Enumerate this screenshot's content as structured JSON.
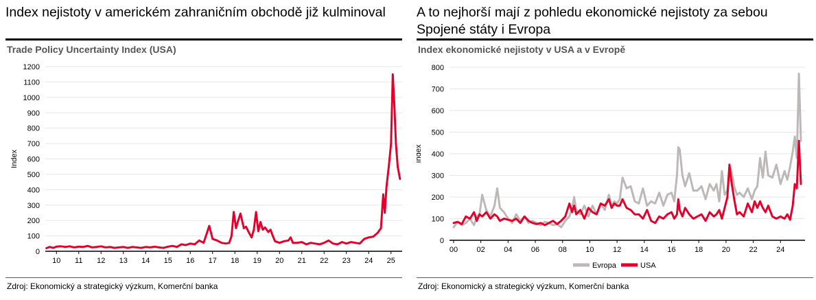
{
  "left": {
    "headline": "Index nejistoty v americkém zahraničním obchodě již kulminoval",
    "subtitle": "Trade Policy Uncertainty Index (USA)",
    "source": "Zdroj: Ekonomický a strategický výzkum, Komerční banka"
  },
  "right": {
    "headline_line1": "A to nejhorší mají z pohledu ekonomické nejistoty za sebou",
    "headline_line2": "Spojené státy i Evropa",
    "subtitle": "Index ekonomické nejistoty v USA a v Evropě",
    "source": "Zdroj: Ekonomický a strategický výzkum, Komerční banka"
  },
  "colors": {
    "usa": "#e4002b",
    "europe": "#bdb8b8",
    "grid": "#e6e6e6",
    "axis": "#000000"
  },
  "chart_data": [
    {
      "type": "line",
      "ylabel": "Index",
      "xlabel": "",
      "ylim": [
        0,
        1200
      ],
      "yticks": [
        0,
        100,
        200,
        300,
        400,
        500,
        600,
        700,
        800,
        900,
        1000,
        1100,
        1200
      ],
      "xlim": [
        2009.5,
        2025.5
      ],
      "xticks": [
        2010,
        2011,
        2012,
        2013,
        2014,
        2015,
        2016,
        2017,
        2018,
        2019,
        2020,
        2021,
        2022,
        2023,
        2024,
        2025
      ],
      "xtick_labels": [
        "10",
        "11",
        "12",
        "13",
        "14",
        "15",
        "16",
        "17",
        "18",
        "19",
        "20",
        "21",
        "22",
        "23",
        "24",
        "25"
      ],
      "legend": "none",
      "grid": "horizontal",
      "series": [
        {
          "name": "",
          "color": "#e4002b",
          "x": [
            2009.55,
            2009.7,
            2009.85,
            2010.0,
            2010.2,
            2010.4,
            2010.6,
            2010.8,
            2011.0,
            2011.2,
            2011.4,
            2011.6,
            2011.8,
            2012.0,
            2012.2,
            2012.4,
            2012.6,
            2012.8,
            2013.0,
            2013.2,
            2013.4,
            2013.6,
            2013.8,
            2014.0,
            2014.2,
            2014.4,
            2014.6,
            2014.8,
            2015.0,
            2015.2,
            2015.4,
            2015.6,
            2015.8,
            2016.0,
            2016.2,
            2016.4,
            2016.6,
            2016.75,
            2016.85,
            2017.0,
            2017.2,
            2017.4,
            2017.6,
            2017.75,
            2017.85,
            2017.95,
            2018.05,
            2018.15,
            2018.25,
            2018.4,
            2018.5,
            2018.6,
            2018.75,
            2018.85,
            2018.95,
            2019.05,
            2019.15,
            2019.25,
            2019.35,
            2019.5,
            2019.6,
            2019.7,
            2019.8,
            2020.0,
            2020.2,
            2020.4,
            2020.5,
            2020.6,
            2020.8,
            2021.0,
            2021.2,
            2021.4,
            2021.6,
            2021.8,
            2022.0,
            2022.2,
            2022.4,
            2022.6,
            2022.8,
            2023.0,
            2023.2,
            2023.4,
            2023.6,
            2023.8,
            2024.0,
            2024.2,
            2024.4,
            2024.55,
            2024.65,
            2024.72,
            2024.8,
            2024.9,
            2025.0,
            2025.08,
            2025.15,
            2025.22,
            2025.3,
            2025.4
          ],
          "y": [
            20,
            28,
            22,
            30,
            32,
            28,
            32,
            25,
            30,
            28,
            35,
            25,
            28,
            32,
            25,
            28,
            22,
            25,
            28,
            22,
            28,
            25,
            22,
            28,
            25,
            30,
            25,
            22,
            30,
            35,
            28,
            45,
            40,
            50,
            45,
            70,
            55,
            120,
            165,
            80,
            70,
            55,
            50,
            55,
            100,
            255,
            150,
            200,
            245,
            150,
            160,
            130,
            90,
            140,
            255,
            130,
            190,
            140,
            155,
            125,
            140,
            100,
            65,
            55,
            65,
            70,
            90,
            55,
            55,
            60,
            45,
            55,
            50,
            45,
            55,
            70,
            50,
            45,
            60,
            50,
            60,
            55,
            50,
            80,
            90,
            95,
            120,
            150,
            370,
            250,
            420,
            550,
            700,
            1150,
            950,
            700,
            550,
            470
          ]
        }
      ]
    },
    {
      "type": "line",
      "ylabel": "Index",
      "xlabel": "",
      "ylim": [
        0,
        800
      ],
      "yticks": [
        0,
        100,
        200,
        300,
        400,
        500,
        600,
        700,
        800
      ],
      "xlim": [
        1999.7,
        2025.8
      ],
      "xticks": [
        2000,
        2002,
        2004,
        2006,
        2008,
        2010,
        2012,
        2014,
        2016,
        2018,
        2020,
        2022,
        2024
      ],
      "xtick_labels": [
        "00",
        "02",
        "04",
        "06",
        "08",
        "10",
        "12",
        "14",
        "16",
        "18",
        "20",
        "22",
        "24"
      ],
      "legend": "bottom-center",
      "grid": "horizontal",
      "series": [
        {
          "name": "Evropa",
          "color": "#bdb8b8",
          "x": [
            2000.0,
            2000.3,
            2000.6,
            2000.9,
            2001.2,
            2001.5,
            2001.7,
            2001.9,
            2002.1,
            2002.4,
            2002.7,
            2003.0,
            2003.2,
            2003.4,
            2003.7,
            2004.0,
            2004.3,
            2004.6,
            2004.9,
            2005.2,
            2005.5,
            2005.8,
            2006.1,
            2006.4,
            2006.7,
            2007.0,
            2007.3,
            2007.6,
            2007.9,
            2008.2,
            2008.5,
            2008.7,
            2008.85,
            2009.0,
            2009.3,
            2009.6,
            2009.9,
            2010.2,
            2010.5,
            2010.8,
            2011.1,
            2011.4,
            2011.6,
            2011.8,
            2012.0,
            2012.2,
            2012.4,
            2012.7,
            2013.0,
            2013.3,
            2013.6,
            2013.9,
            2014.2,
            2014.5,
            2014.8,
            2015.1,
            2015.4,
            2015.7,
            2016.0,
            2016.2,
            2016.4,
            2016.5,
            2016.6,
            2016.8,
            2017.0,
            2017.3,
            2017.6,
            2017.9,
            2018.2,
            2018.5,
            2018.8,
            2019.1,
            2019.3,
            2019.5,
            2019.7,
            2019.9,
            2020.1,
            2020.25,
            2020.4,
            2020.6,
            2020.8,
            2021.0,
            2021.3,
            2021.6,
            2021.9,
            2022.1,
            2022.3,
            2022.5,
            2022.7,
            2022.9,
            2023.1,
            2023.4,
            2023.7,
            2024.0,
            2024.3,
            2024.5,
            2024.7,
            2024.9,
            2025.05,
            2025.2,
            2025.35,
            2025.5
          ],
          "y": [
            60,
            85,
            70,
            80,
            100,
            70,
            110,
            120,
            210,
            140,
            110,
            160,
            240,
            150,
            130,
            100,
            80,
            120,
            90,
            110,
            80,
            90,
            80,
            70,
            85,
            80,
            70,
            75,
            60,
            90,
            110,
            150,
            200,
            140,
            120,
            160,
            110,
            160,
            120,
            170,
            140,
            210,
            160,
            180,
            170,
            190,
            290,
            240,
            250,
            180,
            170,
            240,
            160,
            180,
            170,
            220,
            160,
            210,
            220,
            180,
            300,
            430,
            420,
            300,
            250,
            310,
            230,
            230,
            250,
            190,
            260,
            230,
            260,
            180,
            320,
            210,
            230,
            340,
            320,
            250,
            210,
            220,
            200,
            240,
            190,
            230,
            250,
            380,
            290,
            410,
            300,
            290,
            350,
            260,
            320,
            280,
            340,
            410,
            480,
            380,
            770,
            460
          ]
        },
        {
          "name": "USA",
          "color": "#e4002b",
          "x": [
            2000.0,
            2000.3,
            2000.6,
            2000.9,
            2001.2,
            2001.5,
            2001.7,
            2001.9,
            2002.1,
            2002.4,
            2002.7,
            2003.0,
            2003.2,
            2003.4,
            2003.7,
            2004.0,
            2004.3,
            2004.6,
            2004.9,
            2005.2,
            2005.5,
            2005.8,
            2006.1,
            2006.4,
            2006.7,
            2007.0,
            2007.3,
            2007.6,
            2007.9,
            2008.2,
            2008.5,
            2008.7,
            2008.85,
            2009.0,
            2009.3,
            2009.6,
            2009.9,
            2010.2,
            2010.5,
            2010.8,
            2011.1,
            2011.4,
            2011.6,
            2011.8,
            2012.0,
            2012.2,
            2012.4,
            2012.7,
            2013.0,
            2013.3,
            2013.6,
            2013.9,
            2014.2,
            2014.5,
            2014.8,
            2015.1,
            2015.4,
            2015.7,
            2016.0,
            2016.2,
            2016.4,
            2016.5,
            2016.6,
            2016.8,
            2017.0,
            2017.3,
            2017.6,
            2017.9,
            2018.2,
            2018.5,
            2018.8,
            2019.1,
            2019.3,
            2019.5,
            2019.7,
            2019.9,
            2020.1,
            2020.25,
            2020.4,
            2020.6,
            2020.8,
            2021.0,
            2021.3,
            2021.6,
            2021.9,
            2022.1,
            2022.3,
            2022.5,
            2022.7,
            2022.9,
            2023.1,
            2023.4,
            2023.7,
            2024.0,
            2024.3,
            2024.5,
            2024.7,
            2024.9,
            2025.05,
            2025.2,
            2025.35,
            2025.5
          ],
          "y": [
            80,
            85,
            75,
            110,
            100,
            130,
            90,
            120,
            110,
            130,
            100,
            120,
            110,
            90,
            100,
            95,
            90,
            100,
            80,
            110,
            90,
            80,
            75,
            80,
            70,
            80,
            90,
            75,
            90,
            110,
            170,
            130,
            160,
            120,
            140,
            100,
            150,
            130,
            120,
            170,
            160,
            190,
            150,
            170,
            160,
            160,
            190,
            150,
            140,
            120,
            120,
            100,
            140,
            90,
            80,
            110,
            100,
            120,
            130,
            100,
            120,
            190,
            140,
            110,
            150,
            120,
            100,
            110,
            120,
            90,
            130,
            110,
            120,
            140,
            100,
            150,
            200,
            350,
            270,
            190,
            120,
            130,
            110,
            170,
            130,
            180,
            150,
            180,
            150,
            130,
            160,
            110,
            100,
            110,
            100,
            120,
            95,
            160,
            260,
            240,
            460,
            260
          ]
        }
      ]
    }
  ]
}
